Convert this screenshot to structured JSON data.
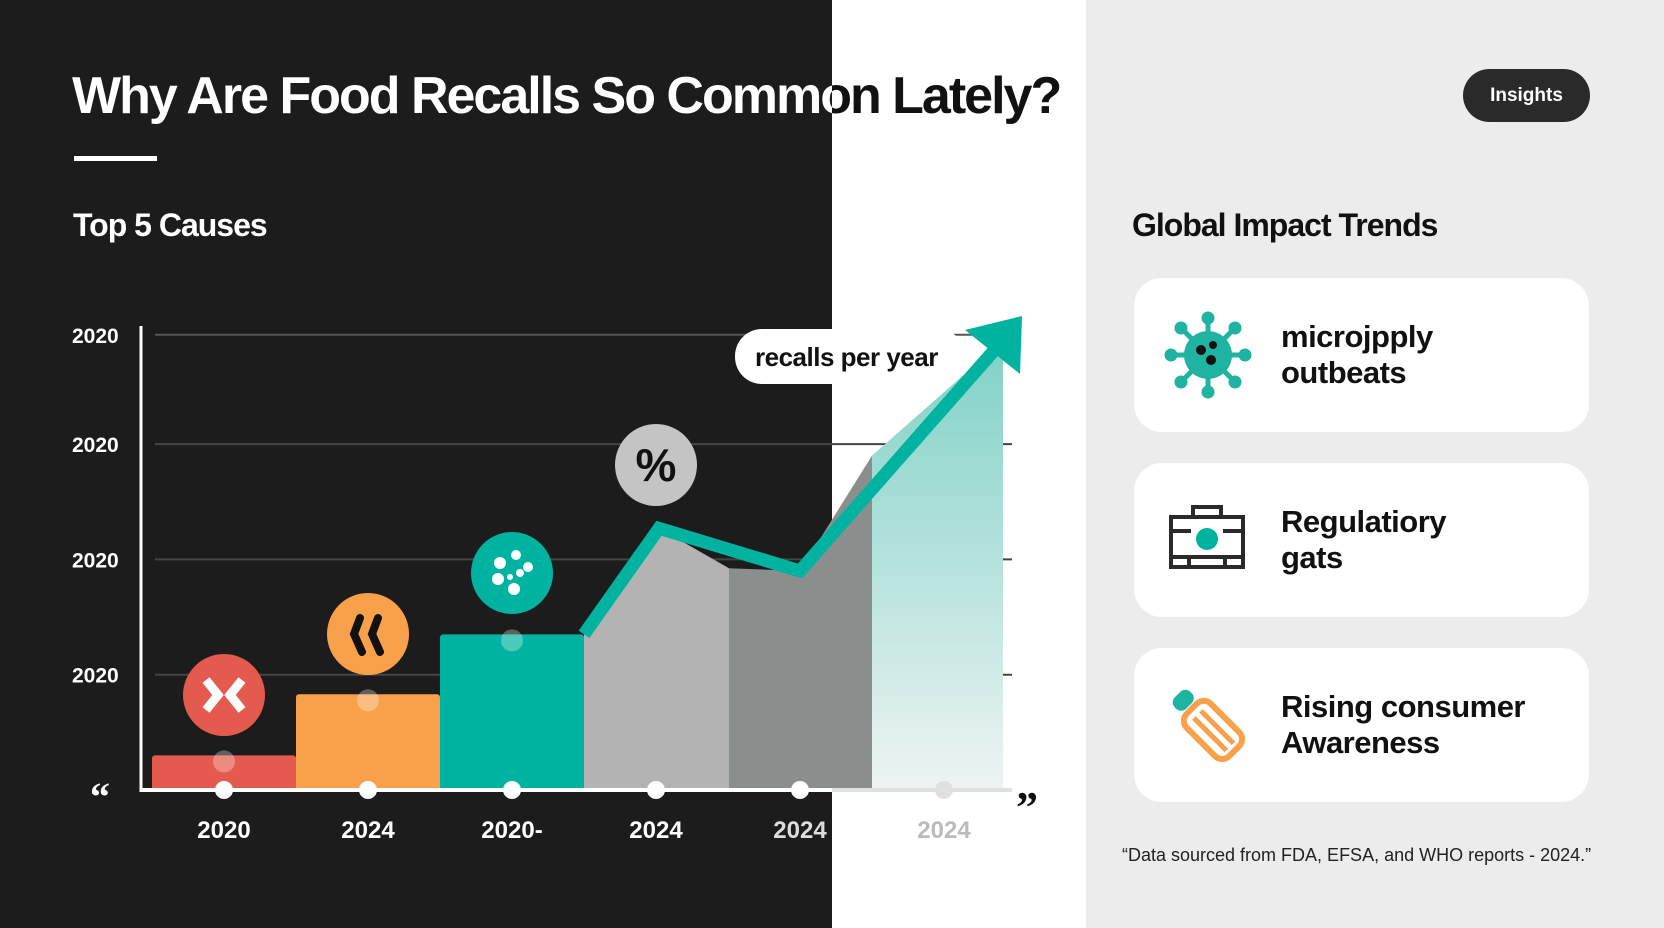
{
  "title": "Why Are Food Recalls So Common Lately?",
  "badge": "Insights",
  "left_heading": "Top 5 Causes",
  "right_heading": "Global Impact Trends",
  "colors": {
    "red": "#e55a4e",
    "orange": "#f8a04a",
    "teal": "#00b3a1",
    "gray": "#b3b3b3",
    "dark": "#1d1c1c"
  },
  "chart_data": {
    "type": "bar",
    "title": "",
    "annotation": "recalls per year",
    "y_tick_labels": [
      "2020",
      "2020",
      "2020",
      "2020"
    ],
    "categories": [
      "2020",
      "2024",
      "2020-",
      "2024",
      "2024",
      "2024"
    ],
    "bars": [
      {
        "category": "2020",
        "value": 0.3,
        "color": "#e55a4e",
        "icon": "biohazard-icon"
      },
      {
        "category": "2024",
        "value": 0.83,
        "color": "#f8a04a",
        "icon": "bacteria-icon"
      },
      {
        "category": "2020-",
        "value": 1.35,
        "color": "#00b3a1",
        "icon": "dots-icon"
      }
    ],
    "trend_line": [
      {
        "x": "2020-",
        "y": 1.35
      },
      {
        "x": "2024",
        "y": 2.27
      },
      {
        "x": "2024",
        "y": 1.9
      },
      {
        "x": "2024",
        "y": 3.9
      }
    ],
    "trend_icon": "percent-icon",
    "ylim": [
      0,
      4
    ],
    "grid": true,
    "quote_open": "“",
    "quote_close": "”"
  },
  "cards": [
    {
      "label_line1": "microjpply",
      "label_line2": "outbeats",
      "icon": "virus-icon"
    },
    {
      "label_line1": "Regulatiory",
      "label_line2": "gats",
      "icon": "camera-kit-icon"
    },
    {
      "label_line1": "Rising consumer",
      "label_line2": "Awareness",
      "icon": "pencil-icon"
    }
  ],
  "footnote": "“Data sourced from FDA, EFSA, and WHO reports - 2024.”"
}
